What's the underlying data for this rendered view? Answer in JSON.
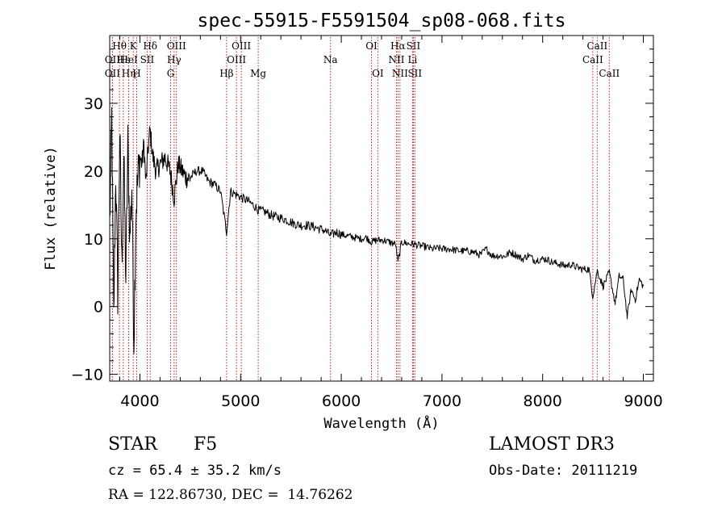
{
  "chart_data": {
    "type": "line",
    "title": "spec-55915-F5591504_sp08-068.fits",
    "xlabel": "Wavelength (Å)",
    "ylabel": "Flux (relative)",
    "xlim": [
      3700,
      9100
    ],
    "ylim": [
      -11,
      40
    ],
    "xticks": [
      4000,
      5000,
      6000,
      7000,
      8000,
      9000
    ],
    "yticks": [
      -10,
      0,
      10,
      20,
      30
    ],
    "grid": false,
    "line_color": "#000000",
    "marker_color": "#b22222",
    "spectrum": {
      "x": [
        3700,
        3720,
        3740,
        3760,
        3780,
        3800,
        3820,
        3840,
        3860,
        3880,
        3900,
        3920,
        3940,
        3960,
        3980,
        4000,
        4020,
        4040,
        4060,
        4080,
        4100,
        4130,
        4160,
        4200,
        4250,
        4300,
        4340,
        4380,
        4420,
        4460,
        4500,
        4560,
        4620,
        4680,
        4740,
        4800,
        4861,
        4900,
        4960,
        5020,
        5080,
        5140,
        5180,
        5240,
        5300,
        5360,
        5420,
        5480,
        5540,
        5600,
        5660,
        5720,
        5780,
        5840,
        5893,
        5950,
        6010,
        6070,
        6130,
        6190,
        6250,
        6300,
        6350,
        6420,
        6480,
        6540,
        6563,
        6600,
        6660,
        6720,
        6780,
        6840,
        6900,
        6960,
        7020,
        7080,
        7140,
        7200,
        7260,
        7320,
        7380,
        7440,
        7500,
        7560,
        7620,
        7680,
        7740,
        7800,
        7860,
        7920,
        7980,
        8040,
        8100,
        8160,
        8220,
        8280,
        8340,
        8400,
        8460,
        8498,
        8542,
        8600,
        8662,
        8720,
        8760,
        8800,
        8840,
        8880,
        8920,
        8960,
        9000
      ],
      "y": [
        12,
        28,
        -2,
        20,
        2,
        26,
        6,
        22,
        4,
        24,
        10,
        18,
        -5,
        14,
        19,
        22,
        21,
        24,
        18,
        23,
        26,
        22,
        20,
        21,
        22,
        20,
        16,
        21,
        20,
        19,
        19,
        20,
        20,
        18.5,
        18,
        17,
        11,
        17,
        16.5,
        16,
        15.5,
        14.8,
        14.2,
        14,
        13.5,
        13.2,
        13,
        12.6,
        12.2,
        12,
        12,
        11.8,
        11.5,
        11.2,
        10.5,
        11,
        10.6,
        10.4,
        10.2,
        10,
        10.2,
        9.5,
        9.8,
        9.8,
        9.5,
        9.2,
        6.5,
        9.5,
        9.3,
        9.2,
        9,
        8.8,
        8.5,
        8.6,
        8.5,
        8.5,
        8.3,
        8.2,
        8.2,
        8,
        7.6,
        8.5,
        7.5,
        7.5,
        7.4,
        8,
        7.6,
        7,
        7.6,
        6.8,
        7,
        7,
        6.5,
        6.3,
        6,
        6.2,
        5.8,
        5.5,
        5.5,
        1.5,
        5.3,
        3,
        5,
        0.5,
        4.5,
        4,
        -1.5,
        2.5,
        1,
        4,
        3
      ]
    },
    "lines": [
      {
        "name": "Hθ",
        "x": 3797,
        "row": 1
      },
      {
        "name": "OII",
        "x": 3727,
        "row": 2
      },
      {
        "name": "OII",
        "x": 3727,
        "row": 3
      },
      {
        "name": "Hε",
        "x": 3835,
        "row": 2
      },
      {
        "name": "Hη",
        "x": 3889,
        "row": 3
      },
      {
        "name": "K",
        "x": 3934,
        "row": 1
      },
      {
        "name": "HeI",
        "x": 3889,
        "row": 2
      },
      {
        "name": "SII",
        "x": 4072,
        "row": 2
      },
      {
        "name": "H",
        "x": 3968,
        "row": 3
      },
      {
        "name": "Hδ",
        "x": 4102,
        "row": 1
      },
      {
        "name": "OIII",
        "x": 4363,
        "row": 1
      },
      {
        "name": "Hγ",
        "x": 4340,
        "row": 2
      },
      {
        "name": "G",
        "x": 4305,
        "row": 3
      },
      {
        "name": "Hβ",
        "x": 4861,
        "row": 3
      },
      {
        "name": "OIII",
        "x": 5007,
        "row": 1
      },
      {
        "name": "OIII",
        "x": 4959,
        "row": 2
      },
      {
        "name": "Mg",
        "x": 5175,
        "row": 3
      },
      {
        "name": "Na",
        "x": 5893,
        "row": 2
      },
      {
        "name": "OI",
        "x": 6300,
        "row": 1
      },
      {
        "name": "OI",
        "x": 6363,
        "row": 3
      },
      {
        "name": "Hα",
        "x": 6563,
        "row": 1
      },
      {
        "name": "SII",
        "x": 6716,
        "row": 1
      },
      {
        "name": "NII",
        "x": 6548,
        "row": 2
      },
      {
        "name": "Li",
        "x": 6708,
        "row": 2
      },
      {
        "name": "NII",
        "x": 6583,
        "row": 3
      },
      {
        "name": "SII",
        "x": 6731,
        "row": 3
      },
      {
        "name": "CaII",
        "x": 8542,
        "row": 1
      },
      {
        "name": "CaII",
        "x": 8498,
        "row": 2
      },
      {
        "name": "CaII",
        "x": 8662,
        "row": 3
      }
    ]
  },
  "info": {
    "object_class": "STAR",
    "subclass": "F5",
    "survey": "LAMOST DR3",
    "cz": "cz = 65.4 ± 35.2 km/s",
    "obs_date": "Obs-Date: 20111219",
    "radec": "RA = 122.86730, DEC =  14.76262"
  }
}
